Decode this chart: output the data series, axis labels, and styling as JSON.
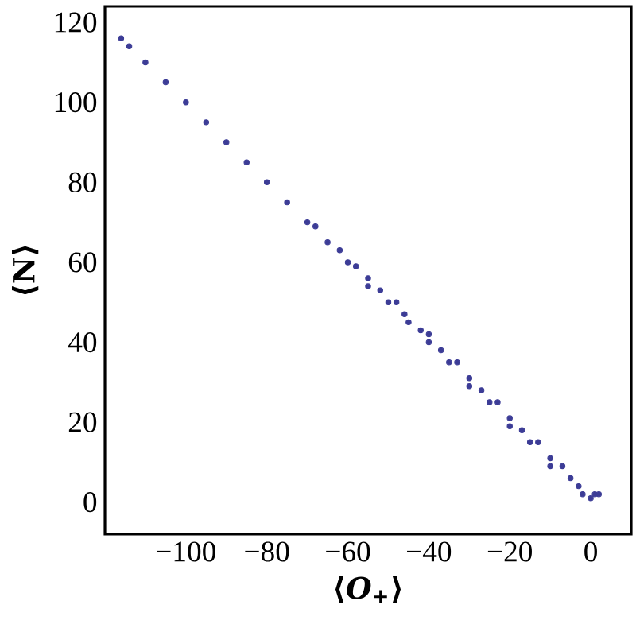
{
  "chart_data": {
    "type": "scatter",
    "xlabel": "⟨*O*$_{+}$⟩",
    "ylabel": "⟨N⟩",
    "xlim": [
      -120,
      10
    ],
    "ylim": [
      -8,
      124
    ],
    "xticks": [
      {
        "value": -100,
        "label": "−100"
      },
      {
        "value": -80,
        "label": "−80"
      },
      {
        "value": -60,
        "label": "−60"
      },
      {
        "value": -40,
        "label": "−40"
      },
      {
        "value": -20,
        "label": "−20"
      },
      0
    ],
    "yticks": [
      0,
      20,
      40,
      60,
      80,
      100,
      120
    ],
    "series": [
      {
        "color": "#3c3c96",
        "x": [
          -116,
          -114,
          -110,
          -105,
          -100,
          -95,
          -90,
          -85,
          -80,
          -75,
          -70,
          -68,
          -65,
          -62,
          -60,
          -58,
          -55,
          -55,
          -52,
          -50,
          -48,
          -46,
          -45,
          -42,
          -40,
          -40,
          -37,
          -35,
          -33,
          -30,
          -30,
          -27,
          -25,
          -23,
          -20,
          -20,
          -17,
          -15,
          -13,
          -10,
          -10,
          -7,
          -5,
          -3,
          -2,
          0,
          1,
          2
        ],
        "values": [
          116,
          114,
          110,
          105,
          100,
          95,
          90,
          85,
          80,
          75,
          70,
          69,
          65,
          63,
          60,
          59,
          56,
          54,
          53,
          50,
          50,
          47,
          45,
          43,
          40,
          42,
          38,
          35,
          35,
          31,
          29,
          28,
          25,
          25,
          21,
          19,
          18,
          15,
          15,
          11,
          9,
          9,
          6,
          4,
          2,
          1,
          2,
          2
        ]
      }
    ]
  }
}
